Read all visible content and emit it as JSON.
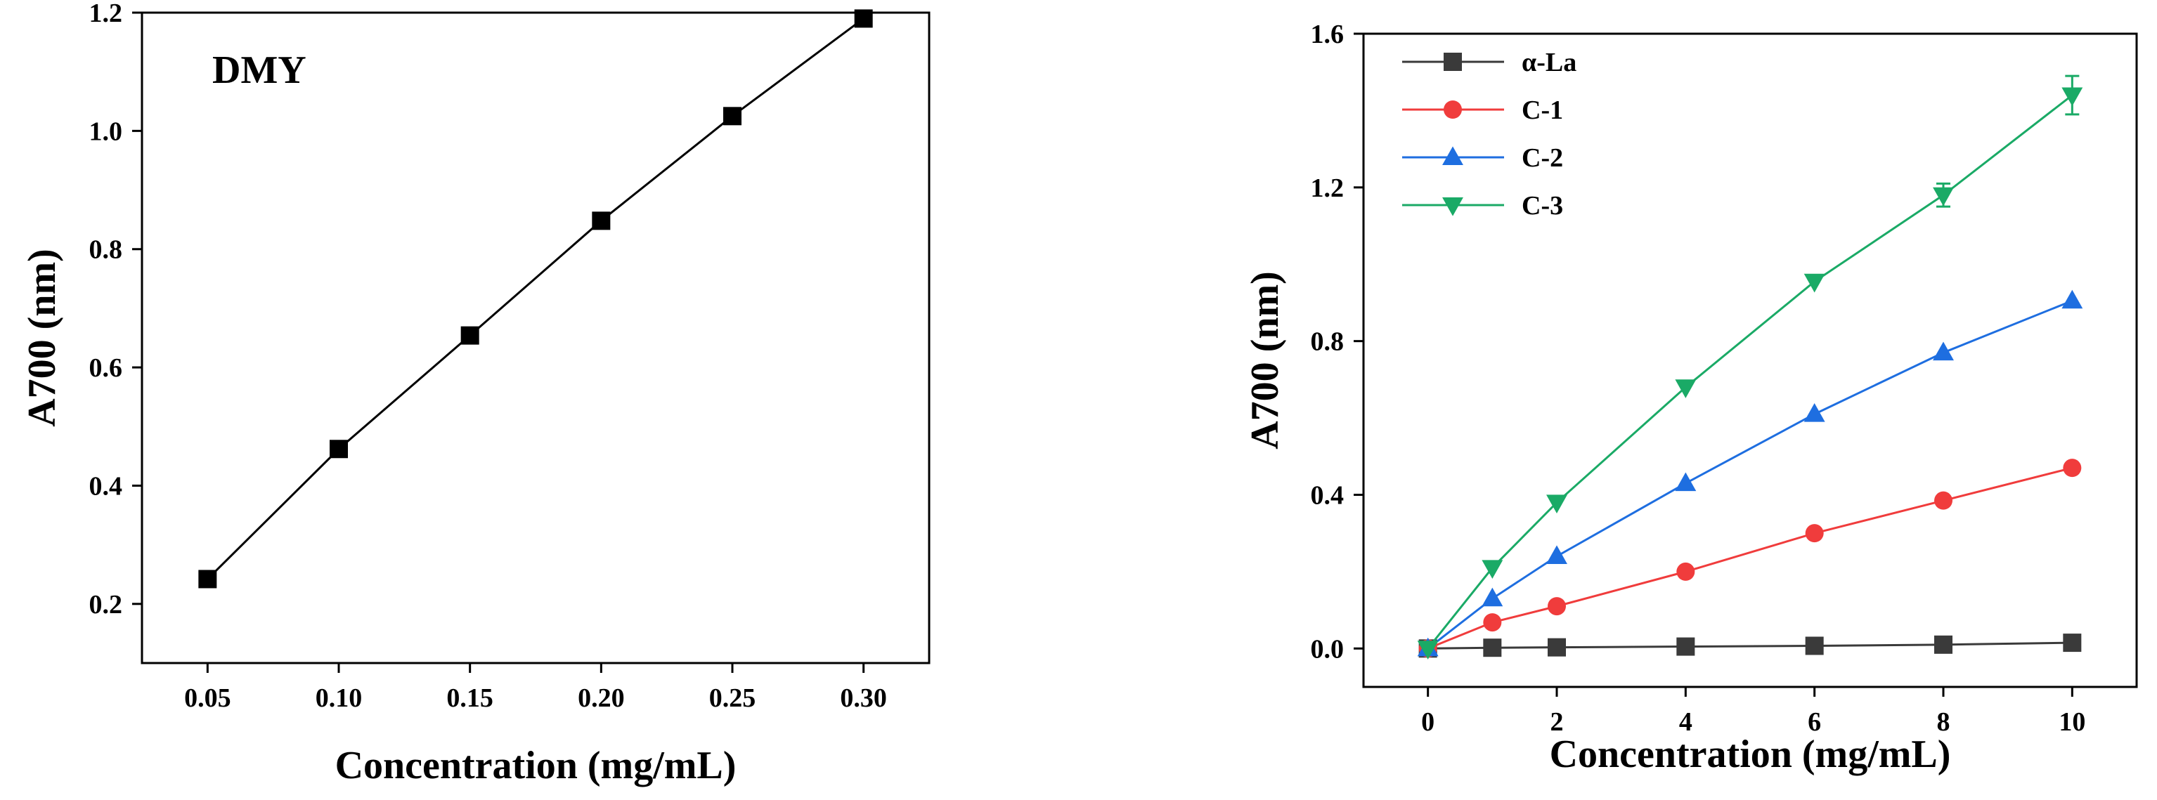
{
  "chart_data": [
    {
      "type": "line",
      "annotation": "DMY",
      "xlabel": "Concentration (mg/mL)",
      "ylabel": "A700 (nm)",
      "xlim": [
        0.025,
        0.325
      ],
      "ylim": [
        0.1,
        1.2
      ],
      "xticks": [
        "0.05",
        "0.10",
        "0.15",
        "0.20",
        "0.25",
        "0.30"
      ],
      "yticks": [
        "0.2",
        "0.4",
        "0.6",
        "0.8",
        "1.0",
        "1.2"
      ],
      "series": [
        {
          "name": "DMY",
          "color": "#000000",
          "marker": "square",
          "x": [
            0.05,
            0.1,
            0.15,
            0.2,
            0.25,
            0.3
          ],
          "y": [
            0.242,
            0.462,
            0.654,
            0.848,
            1.025,
            1.19
          ]
        }
      ]
    },
    {
      "type": "line",
      "xlabel": "Concentration (mg/mL)",
      "ylabel": "A700 (nm)",
      "xlim": [
        -1,
        11
      ],
      "ylim": [
        -0.1,
        1.6
      ],
      "xticks": [
        "0",
        "2",
        "4",
        "6",
        "8",
        "10"
      ],
      "yticks": [
        "0.0",
        "0.4",
        "0.8",
        "1.2",
        "1.6"
      ],
      "legend_position": "top-left",
      "series": [
        {
          "name": "α-La",
          "color": "#3a3a3a",
          "marker": "square",
          "x": [
            0,
            1,
            2,
            4,
            6,
            8,
            10
          ],
          "y": [
            0.0,
            0.002,
            0.003,
            0.005,
            0.007,
            0.01,
            0.015
          ]
        },
        {
          "name": "C-1",
          "color": "#f03c3c",
          "marker": "circle",
          "x": [
            0,
            1,
            2,
            4,
            6,
            8,
            10
          ],
          "y": [
            0.0,
            0.068,
            0.11,
            0.2,
            0.3,
            0.385,
            0.47
          ]
        },
        {
          "name": "C-2",
          "color": "#1e6ee0",
          "marker": "triangle-up",
          "x": [
            0,
            1,
            2,
            4,
            6,
            8,
            10
          ],
          "y": [
            0.0,
            0.13,
            0.24,
            0.43,
            0.61,
            0.77,
            0.905
          ]
        },
        {
          "name": "C-3",
          "color": "#1aaa66",
          "marker": "triangle-down",
          "x": [
            0,
            1,
            2,
            4,
            6,
            8,
            10
          ],
          "y": [
            0.0,
            0.21,
            0.38,
            0.68,
            0.955,
            1.18,
            1.44
          ],
          "error": [
            0,
            0,
            0,
            0,
            0,
            0.03,
            0.05
          ]
        }
      ]
    }
  ]
}
